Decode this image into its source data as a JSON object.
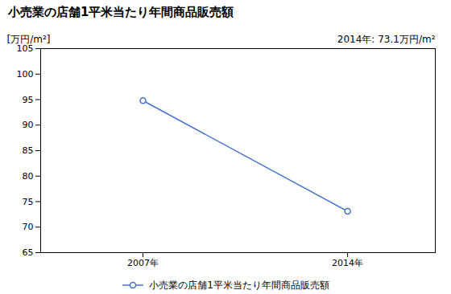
{
  "chart_data": {
    "type": "line",
    "title": "小売業の店舗1平米当たり年間商品販売額",
    "ylabel": "[万円/m²]",
    "annotation": "2014年: 73.1万円/m²",
    "x": [
      2007,
      2014
    ],
    "series": [
      {
        "name": "小売業の店舗1平米当たり年間商品販売額",
        "color": "#4472C4",
        "values": [
          94.8,
          73.1
        ],
        "marker": "circle"
      }
    ],
    "xlim": [
      2003.5,
      2017
    ],
    "xticks": [
      {
        "value": 2007,
        "label": "2007年"
      },
      {
        "value": 2014,
        "label": "2014年"
      }
    ],
    "ylim": [
      65,
      105
    ],
    "yticks": [
      65,
      70,
      75,
      80,
      85,
      90,
      95,
      100,
      105
    ],
    "grid": false,
    "legend": "bottom"
  }
}
